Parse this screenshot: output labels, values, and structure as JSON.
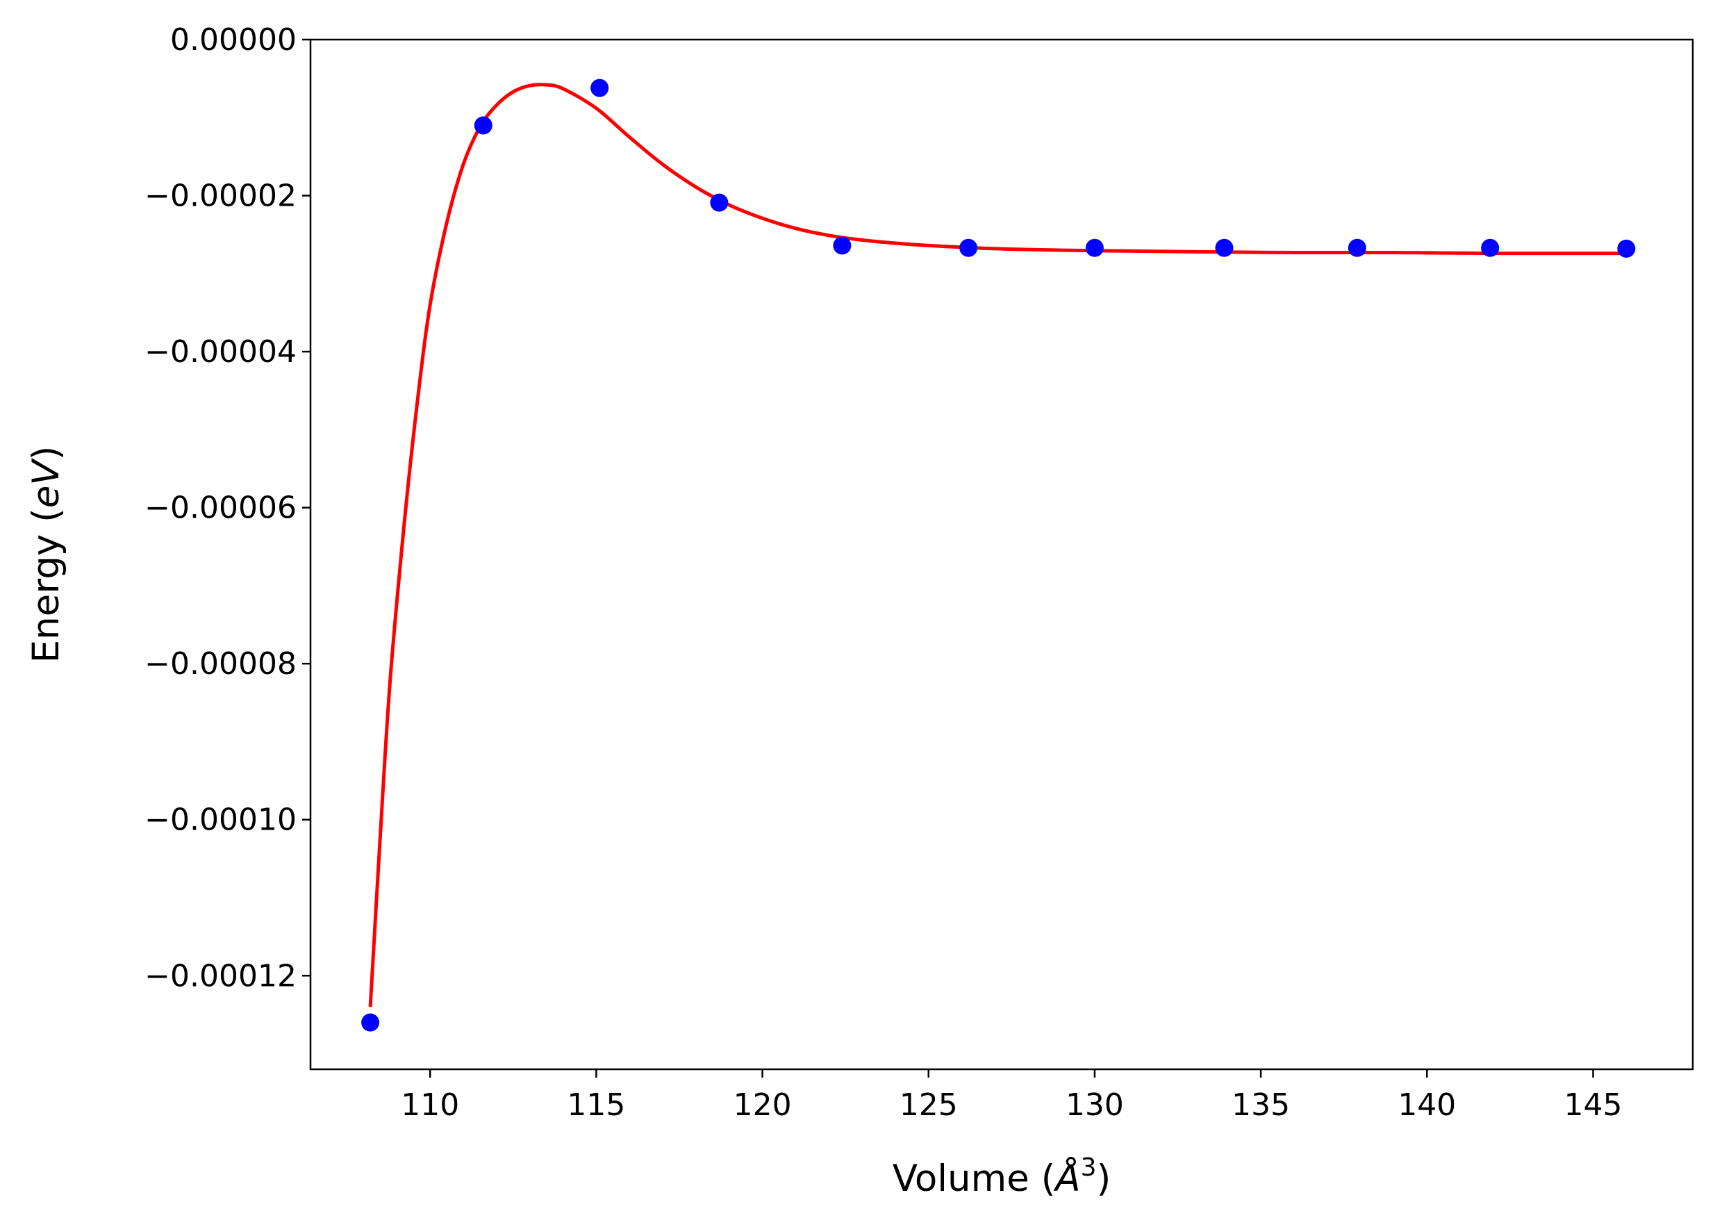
{
  "chart_data": {
    "type": "scatter",
    "title": "",
    "xlabel": "Volume (Å³)",
    "xlabel_parts": {
      "prefix": "Volume (",
      "symbol": "Å",
      "sup": "3",
      "suffix": ")"
    },
    "ylabel": "Energy (eV)",
    "ylabel_parts": {
      "prefix": "Energy (",
      "unit": "eV",
      "suffix": ")"
    },
    "xlim": [
      106.4,
      148.0
    ],
    "ylim": [
      -0.000132,
      0.0
    ],
    "xticks": [
      110,
      115,
      120,
      125,
      130,
      135,
      140,
      145
    ],
    "xtick_labels": [
      "110",
      "115",
      "120",
      "125",
      "130",
      "135",
      "140",
      "145"
    ],
    "yticks": [
      0.0,
      -2e-05,
      -4e-05,
      -6e-05,
      -8e-05,
      -0.0001,
      -0.00012
    ],
    "ytick_labels": [
      "0.00000",
      "−0.00002",
      "−0.00004",
      "−0.00006",
      "−0.00008",
      "−0.00010",
      "−0.00012"
    ],
    "grid": false,
    "series": [
      {
        "kind": "points",
        "color": "#0000ff",
        "x": [
          108.2,
          111.6,
          115.1,
          118.7,
          122.4,
          126.2,
          130.0,
          133.9,
          137.9,
          141.9,
          146.0
        ],
        "y": [
          -0.000126,
          -1.1e-05,
          -6.2e-06,
          -2.09e-05,
          -2.64e-05,
          -2.67e-05,
          -2.67e-05,
          -2.67e-05,
          -2.67e-05,
          -2.67e-05,
          -2.68e-05
        ]
      },
      {
        "kind": "fit-line",
        "color": "#ff0000",
        "x": [
          108.2,
          108.5,
          108.8,
          109.2,
          109.6,
          110.0,
          110.5,
          111.0,
          111.5,
          112.0,
          112.5,
          113.0,
          113.5,
          114.0,
          115.0,
          116.0,
          117.0,
          118.0,
          119.0,
          120.0,
          121.0,
          122.0,
          123.0,
          124.0,
          125.0,
          127.0,
          129.0,
          131.0,
          133.0,
          136.0,
          139.0,
          142.0,
          146.0
        ],
        "y": [
          -0.000124,
          -0.000102,
          -8.2e-05,
          -6.3e-05,
          -4.7e-05,
          -3.4e-05,
          -2.35e-05,
          -1.6e-05,
          -1.12e-05,
          -8.4e-06,
          -6.7e-06,
          -5.9e-06,
          -5.8e-06,
          -6.3e-06,
          -8.8e-06,
          -1.25e-05,
          -1.6e-05,
          -1.89e-05,
          -2.12e-05,
          -2.29e-05,
          -2.42e-05,
          -2.51e-05,
          -2.57e-05,
          -2.61e-05,
          -2.64e-05,
          -2.68e-05,
          -2.7e-05,
          -2.71e-05,
          -2.72e-05,
          -2.73e-05,
          -2.73e-05,
          -2.74e-05,
          -2.74e-05
        ]
      }
    ]
  }
}
